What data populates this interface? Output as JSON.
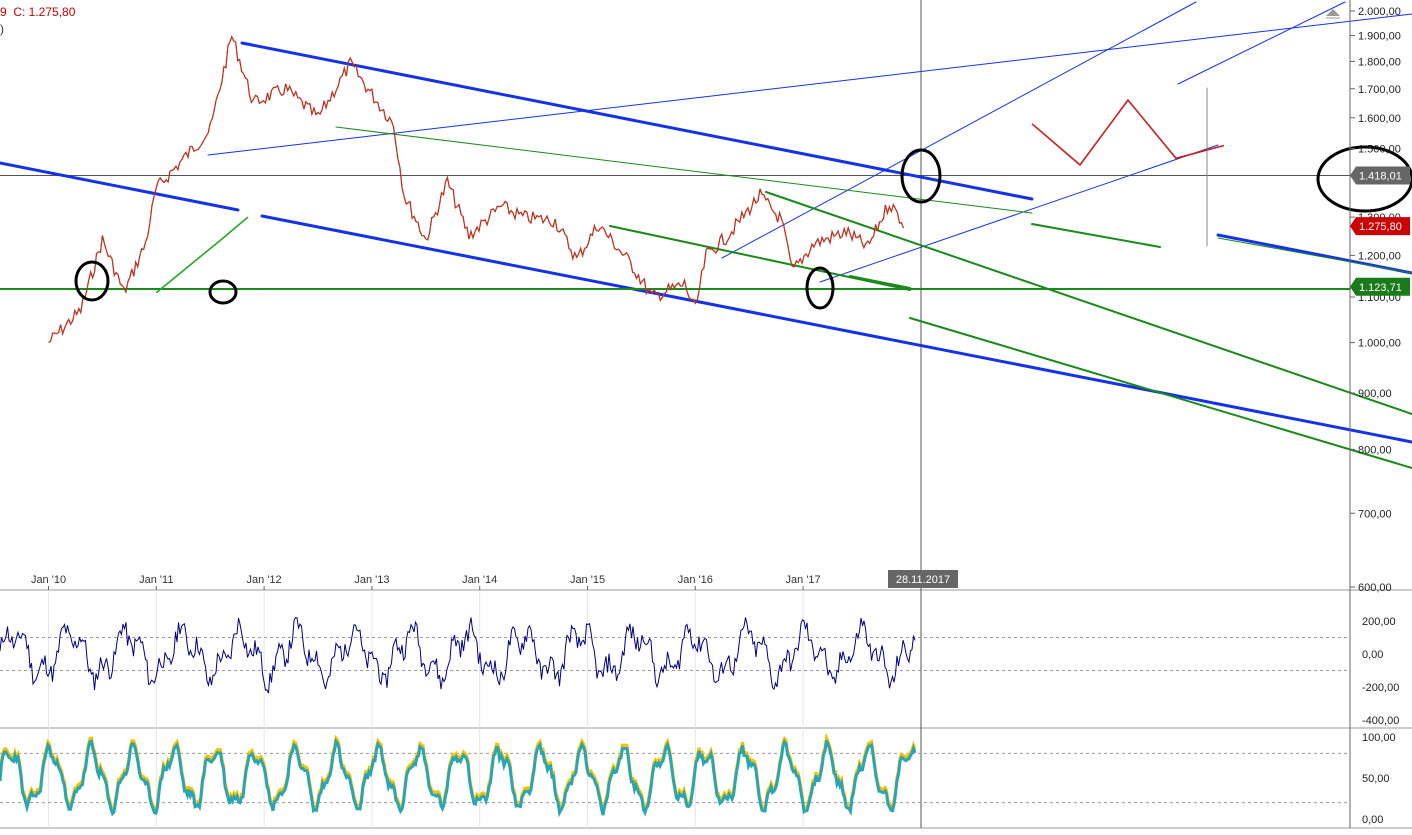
{
  "header": {
    "close_text": "9  C: 1.275,80",
    "line2": ")"
  },
  "chart_data": [
    {
      "type": "line",
      "name": "main-price-panel",
      "x_ticks": [
        "Jan '10",
        "Jan '11",
        "Jan '12",
        "Jan '13",
        "Jan '14",
        "Jan '15",
        "Jan '16",
        "Jan '17"
      ],
      "y_ticks": [
        "2.000,00",
        "1.900,00",
        "1.800,00",
        "1.700,00",
        "1.600,00",
        "1.500,00",
        "1.300,00",
        "1.200,00",
        "1.100,00",
        "1.000,00",
        "900,00",
        "800,00",
        "700,00",
        "600,00"
      ],
      "y_tick_values": [
        2000,
        1900,
        1800,
        1700,
        1600,
        1500,
        1300,
        1200,
        1100,
        1000,
        900,
        800,
        700,
        600
      ],
      "ylim": [
        600,
        2000
      ],
      "y_scale": "log",
      "crosshair_date": "28.11.2017",
      "price_tags": [
        {
          "label": "1.418,01",
          "value": 1418.01,
          "color": "#666666"
        },
        {
          "label": "1.275,80",
          "value": 1275.8,
          "color": "#cc0000"
        },
        {
          "label": "1.123,71",
          "value": 1123.71,
          "color": "#1a7a1a"
        }
      ],
      "price_path_xy": [
        [
          2010.0,
          1000
        ],
        [
          2010.3,
          1070
        ],
        [
          2010.5,
          1240
        ],
        [
          2010.7,
          1110
        ],
        [
          2010.9,
          1230
        ],
        [
          2011.0,
          1380
        ],
        [
          2011.2,
          1450
        ],
        [
          2011.5,
          1560
        ],
        [
          2011.7,
          1900
        ],
        [
          2011.9,
          1650
        ],
        [
          2012.2,
          1700
        ],
        [
          2012.5,
          1600
        ],
        [
          2012.8,
          1790
        ],
        [
          2013.0,
          1680
        ],
        [
          2013.2,
          1580
        ],
        [
          2013.3,
          1360
        ],
        [
          2013.5,
          1240
        ],
        [
          2013.7,
          1400
        ],
        [
          2013.9,
          1250
        ],
        [
          2014.2,
          1330
        ],
        [
          2014.4,
          1300
        ],
        [
          2014.7,
          1290
        ],
        [
          2014.9,
          1190
        ],
        [
          2015.1,
          1280
        ],
        [
          2015.4,
          1180
        ],
        [
          2015.6,
          1100
        ],
        [
          2015.9,
          1130
        ],
        [
          2016.0,
          1070
        ],
        [
          2016.1,
          1200
        ],
        [
          2016.3,
          1250
        ],
        [
          2016.6,
          1360
        ],
        [
          2016.8,
          1290
        ],
        [
          2016.9,
          1160
        ],
        [
          2017.1,
          1230
        ],
        [
          2017.4,
          1260
        ],
        [
          2017.6,
          1220
        ],
        [
          2017.8,
          1340
        ],
        [
          2017.95,
          1276
        ]
      ],
      "projection_segments": [
        [
          [
            2011.0,
            1110
          ],
          [
            2011.6,
            1240
          ],
          [
            2011.85,
            1300
          ]
        ],
        [
          [
            2019.0,
            1580
          ],
          [
            2019.4,
            1450
          ],
          [
            2019.8,
            1660
          ],
          [
            2020.2,
            1470
          ],
          [
            2020.6,
            1510
          ]
        ]
      ]
    },
    {
      "type": "line",
      "name": "oscillator-panel-1",
      "y_ticks": [
        "200,00",
        "0,00",
        "-200,00",
        "-400,00"
      ],
      "y_tick_values": [
        200,
        0,
        -200,
        -400
      ],
      "ylim": [
        -430,
        300
      ],
      "reference_lines": [
        100,
        -100
      ],
      "color": "#000080"
    },
    {
      "type": "line",
      "name": "oscillator-panel-2",
      "y_ticks": [
        "100,00",
        "50,00",
        "0,00"
      ],
      "y_tick_values": [
        100,
        50,
        0
      ],
      "ylim": [
        -5,
        105
      ],
      "reference_lines": [
        80,
        20
      ],
      "series": [
        {
          "color": "#2aa5b5"
        },
        {
          "color": "#f2c200"
        }
      ]
    }
  ]
}
